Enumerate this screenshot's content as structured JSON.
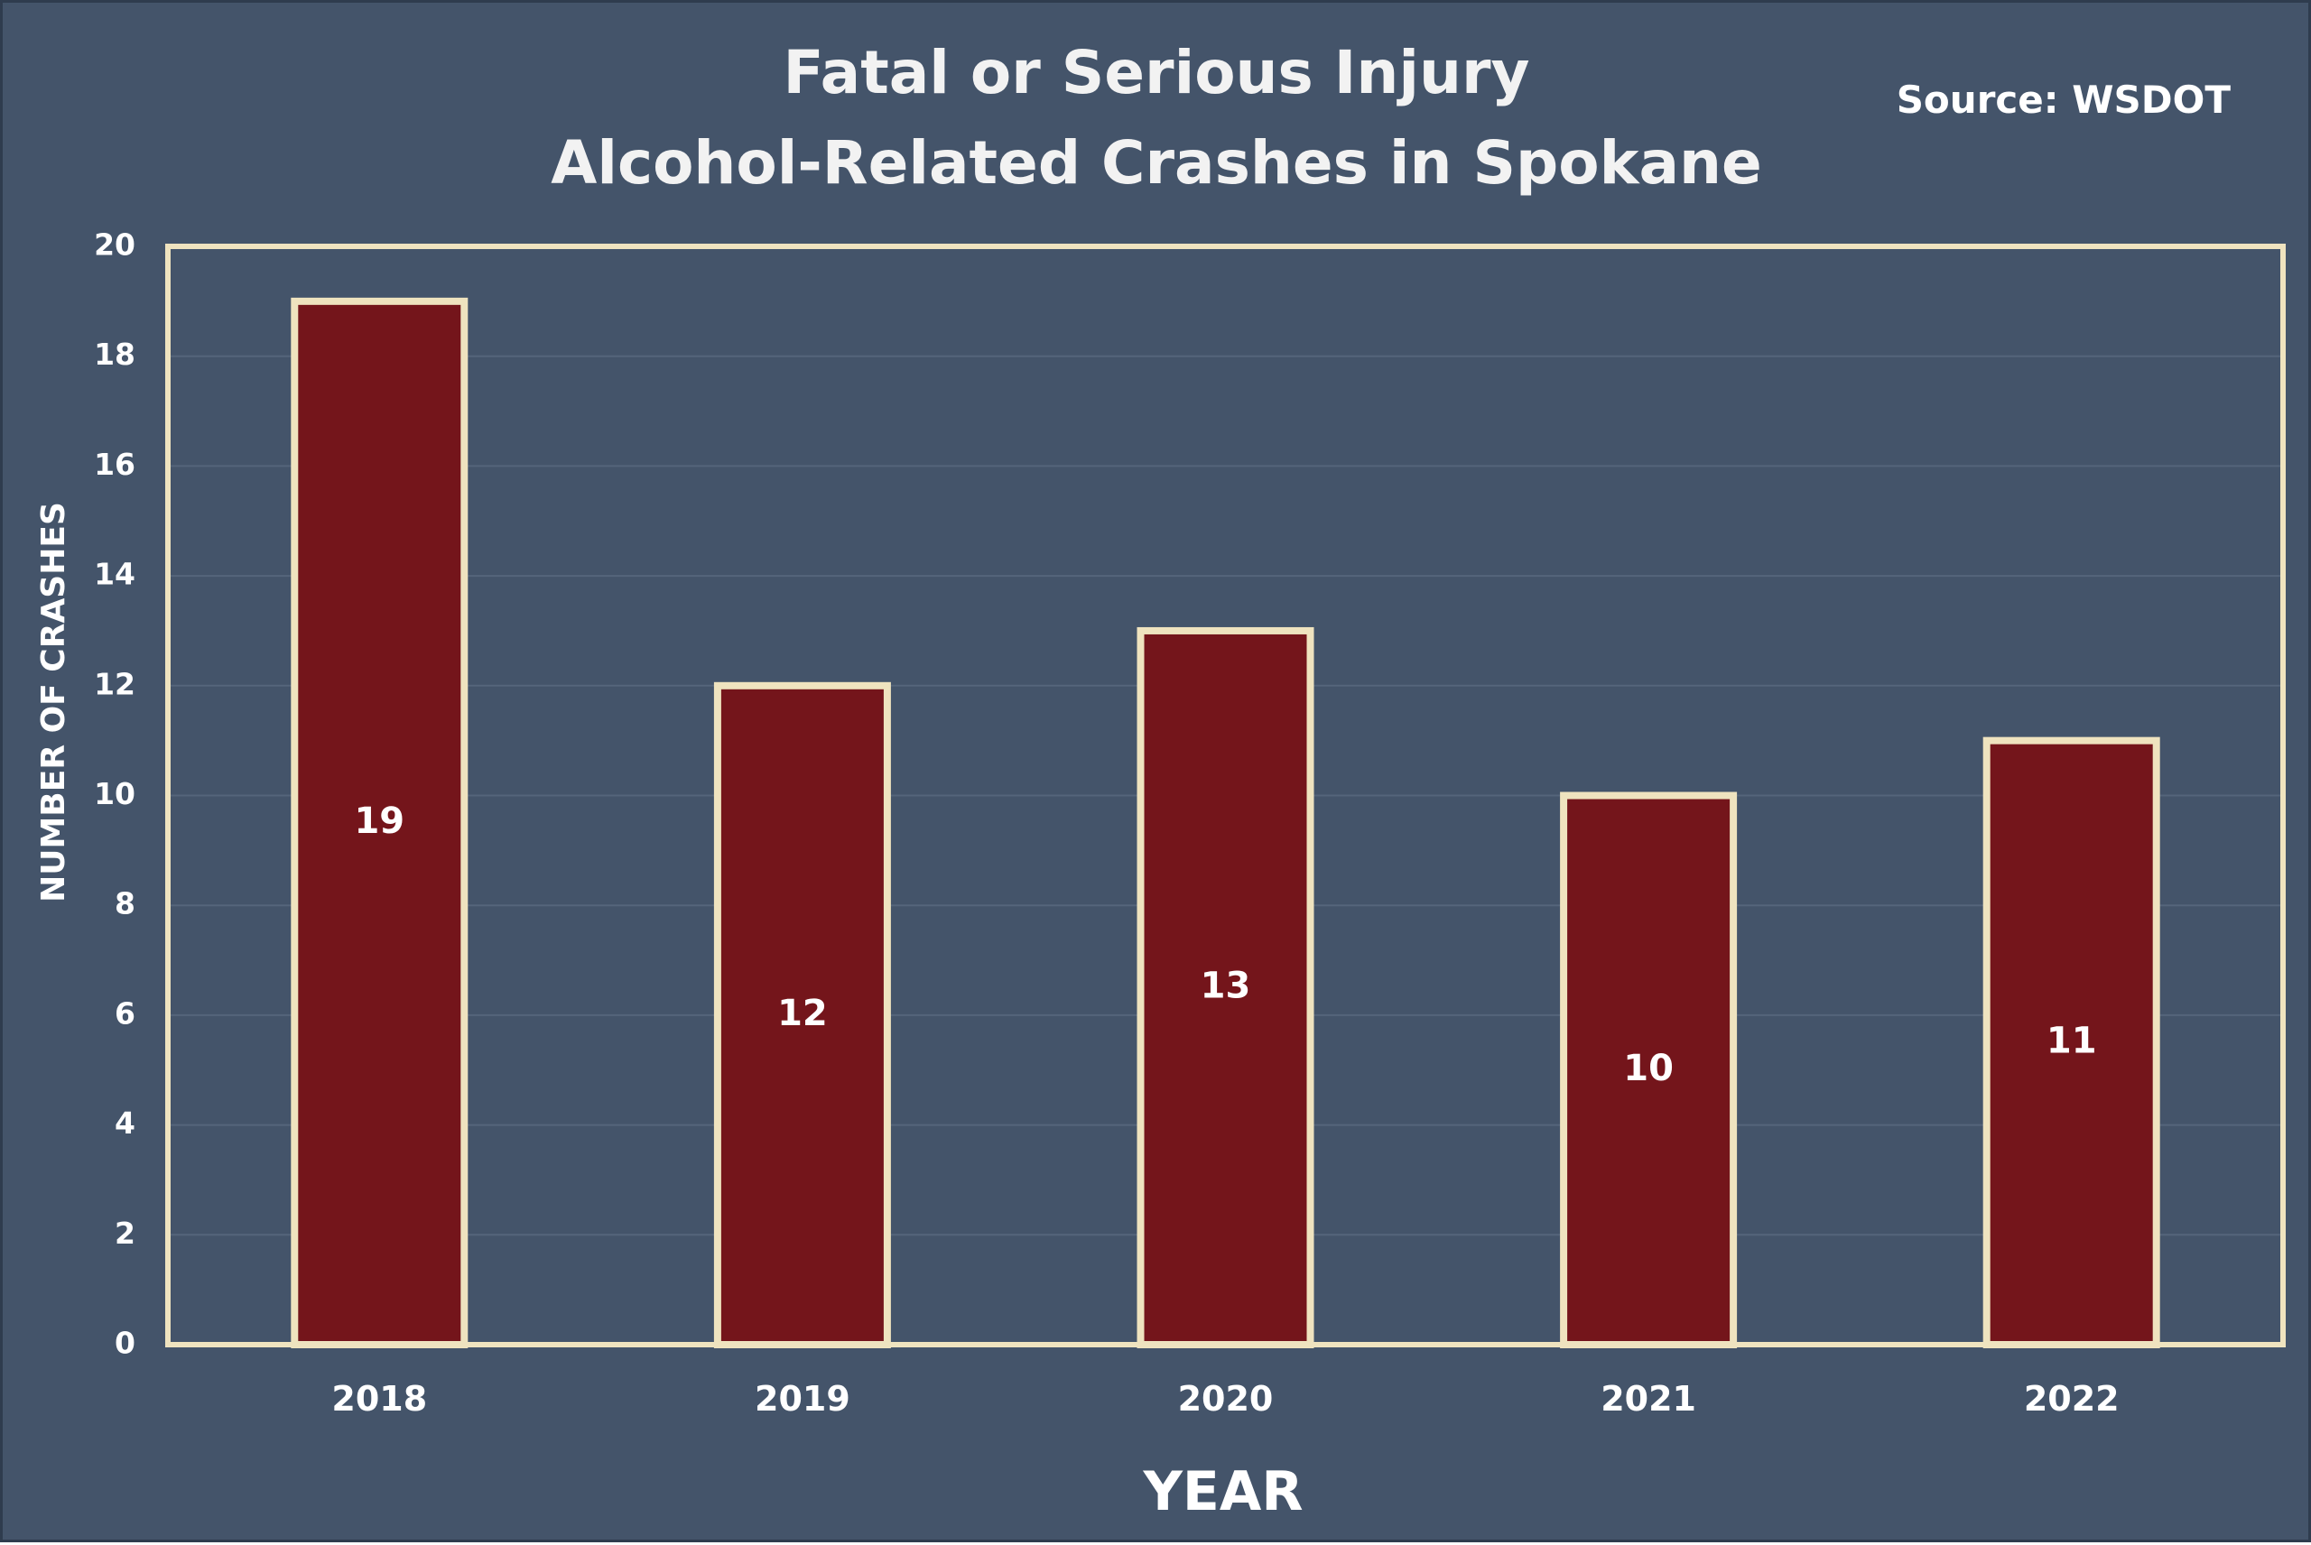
{
  "chart_data": {
    "type": "bar",
    "title_lines": [
      "Fatal or Serious Injury",
      "Alcohol-Related Crashes in Spokane"
    ],
    "source": "Source: WSDOT",
    "categories": [
      "2018",
      "2019",
      "2020",
      "2021",
      "2022"
    ],
    "values": [
      19,
      12,
      13,
      10,
      11
    ],
    "data_labels": [
      "19",
      "12",
      "13",
      "10",
      "11"
    ],
    "xlabel": "YEAR",
    "ylabel": "NUMBER OF CRASHES",
    "ylim": [
      0,
      20
    ],
    "yticks": [
      "0",
      "2",
      "4",
      "6",
      "8",
      "10",
      "12",
      "14",
      "16",
      "18",
      "20"
    ],
    "grid": true,
    "bar_color": "#74151b",
    "bar_edge_color": "#efe3bf",
    "background_color": "#44546a"
  }
}
